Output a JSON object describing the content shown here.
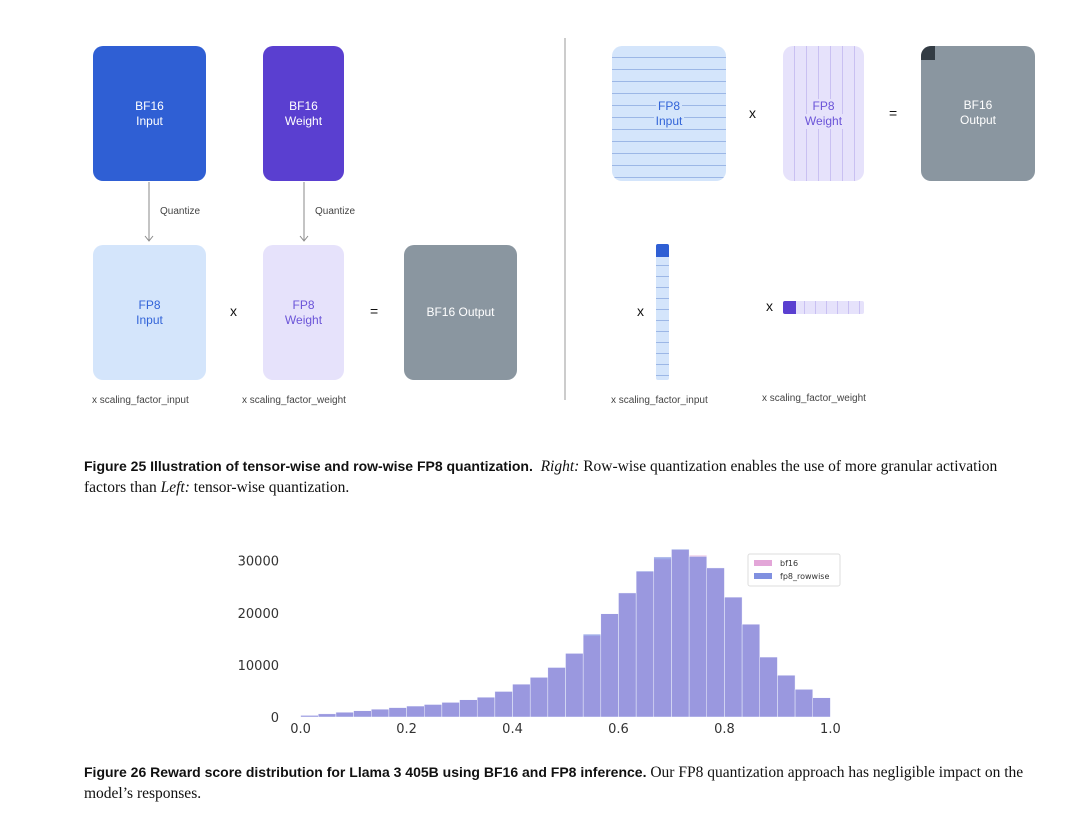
{
  "figure25": {
    "left": {
      "bf16_input": {
        "line1": "BF16",
        "line2": "Input"
      },
      "bf16_weight": {
        "line1": "BF16",
        "line2": "Weight"
      },
      "quantize_left": "Quantize",
      "quantize_right": "Quantize",
      "fp8_input": {
        "line1": "FP8",
        "line2": "Input"
      },
      "fp8_weight": {
        "line1": "FP8",
        "line2": "Weight"
      },
      "times": "x",
      "equals": "=",
      "bf16_output": "BF16 Output",
      "scale_input": "x scaling_factor_input",
      "scale_weight": "x scaling_factor_weight"
    },
    "right": {
      "fp8_input": {
        "line1": "FP8",
        "line2": "Input"
      },
      "fp8_weight": {
        "line1": "FP8",
        "line2": "Weight"
      },
      "times": "x",
      "equals": "=",
      "bf16_output": {
        "line1": "BF16",
        "line2": "Output"
      },
      "times_col": "x",
      "times_row": "x",
      "scale_input": "x scaling_factor_input",
      "scale_weight": "x scaling_factor_weight"
    },
    "colors": {
      "bf16_input": "#2f5fd4",
      "bf16_weight": "#5a3fd0",
      "fp8_input": "#d4e5fb",
      "fp8_weight": "#e6e2fb",
      "output": "#8a96a0",
      "fp8_input_text": "#3264d8",
      "fp8_weight_text": "#6b54d8"
    },
    "caption": {
      "lead": "Figure 25  Illustration of tensor-wise and row-wise FP8 quantization.",
      "right_label": "Right:",
      "text1": " Row-wise quantization enables the use of more granular activation factors than ",
      "left_label": "Left:",
      "text2": " tensor-wise quantization."
    }
  },
  "figure26": {
    "caption": {
      "lead": "Figure 26  Reward score distribution for Llama 3 405B using BF16 and FP8 inference.",
      "text": " Our FP8 quantization approach has negligible impact on the model’s responses."
    }
  },
  "chart_data": {
    "type": "bar",
    "title": "",
    "xlabel": "",
    "ylabel": "",
    "xlim": [
      -0.02,
      1.02
    ],
    "ylim": [
      0,
      33000
    ],
    "xticks": [
      "0.0",
      "0.2",
      "0.4",
      "0.6",
      "0.8",
      "1.0"
    ],
    "yticks": [
      "0",
      "10000",
      "20000",
      "30000"
    ],
    "grid": false,
    "legend": "top-right",
    "bin_edges": [
      0.0,
      0.0333,
      0.0667,
      0.1,
      0.1333,
      0.1667,
      0.2,
      0.2333,
      0.2667,
      0.3,
      0.3333,
      0.3667,
      0.4,
      0.4333,
      0.4667,
      0.5,
      0.5333,
      0.5667,
      0.6,
      0.6333,
      0.6667,
      0.7,
      0.7333,
      0.7667,
      0.8,
      0.8333,
      0.8667,
      0.9,
      0.9333,
      0.9667,
      1.0
    ],
    "series": [
      {
        "name": "bf16",
        "color": "#e3a6d8",
        "values": [
          300,
          600,
          900,
          1200,
          1500,
          1800,
          2100,
          2400,
          2800,
          3300,
          3800,
          4900,
          6300,
          7600,
          9500,
          12200,
          15600,
          19800,
          23800,
          27900,
          30300,
          32100,
          31000,
          28600,
          23000,
          17800,
          11500,
          8000,
          5300,
          3700
        ]
      },
      {
        "name": "fp8_rowwise",
        "color": "#8090e0",
        "values": [
          300,
          600,
          900,
          1200,
          1500,
          1800,
          2100,
          2400,
          2800,
          3300,
          3800,
          4900,
          6300,
          7600,
          9500,
          12200,
          15900,
          19800,
          23800,
          28000,
          30700,
          32200,
          30800,
          28600,
          23000,
          17800,
          11500,
          8000,
          5300,
          3700
        ]
      }
    ]
  }
}
